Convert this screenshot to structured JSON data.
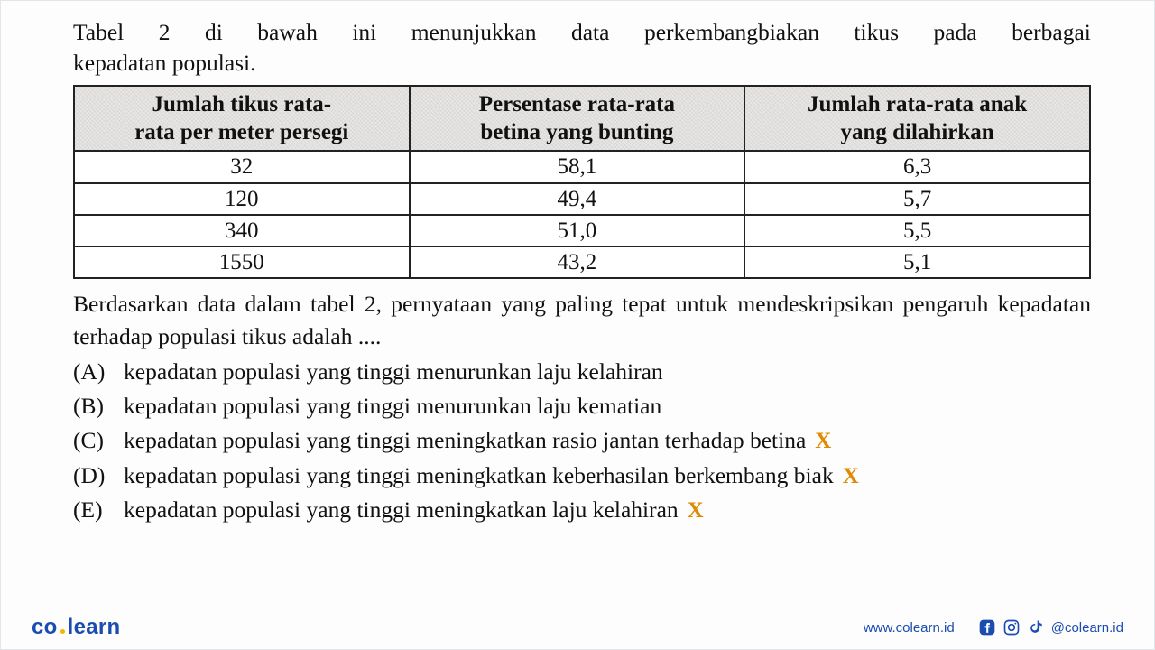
{
  "intro_words": [
    "Tabel",
    "2",
    "di",
    "bawah",
    "ini",
    "menunjukkan",
    "data",
    "perkembangbiakan",
    "tikus",
    "pada",
    "berbagai"
  ],
  "intro_line2": "kepadatan populasi.",
  "table": {
    "columns": [
      "Jumlah tikus rata-\nrata per meter persegi",
      "Persentase rata-rata\nbetina yang bunting",
      "Jumlah rata-rata anak\nyang dilahirkan"
    ],
    "col_widths_pct": [
      33,
      33,
      34
    ],
    "rows": [
      [
        "32",
        "58,1",
        "6,3"
      ],
      [
        "120",
        "49,4",
        "5,7"
      ],
      [
        "340",
        "51,0",
        "5,5"
      ],
      [
        "1550",
        "43,2",
        "5,1"
      ]
    ],
    "header_bg": "#e8e7e5",
    "border_color": "#222222",
    "cell_bg": "#ffffff",
    "font_size_pt": 19
  },
  "question": "Berdasarkan data dalam tabel 2, pernyataan yang paling tepat untuk mendeskripsikan pengaruh kepadatan terhadap populasi tikus adalah ....",
  "options": [
    {
      "label": "(A)",
      "text": "kepadatan populasi yang tinggi menurunkan laju kelahiran",
      "mark": ""
    },
    {
      "label": "(B)",
      "text": "kepadatan populasi yang tinggi menurunkan laju kematian",
      "mark": ""
    },
    {
      "label": "(C)",
      "text": "kepadatan populasi yang tinggi meningkatkan rasio jantan terhadap betina",
      "mark": "X"
    },
    {
      "label": "(D)",
      "text": "kepadatan populasi yang tinggi meningkatkan keberhasilan berkembang biak",
      "mark": "X"
    },
    {
      "label": "(E)",
      "text": "kepadatan populasi yang tinggi meningkatkan laju kelahiran",
      "mark": "X"
    }
  ],
  "mark_color": "#e08a00",
  "footer": {
    "logo_left": "co",
    "logo_right": "learn",
    "site": "www.colearn.id",
    "handle": "@colearn.id",
    "brand_color": "#1b4db1"
  }
}
